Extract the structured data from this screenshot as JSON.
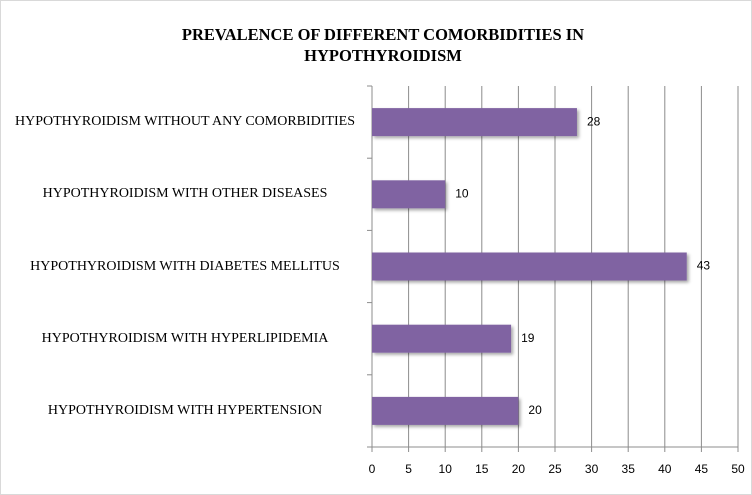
{
  "chart_data": {
    "type": "barh",
    "title": "PREVALENCE OF DIFFERENT COMORBIDITIES IN HYPOTHYROIDISM",
    "categories": [
      "HYPOTHYROIDISM WITHOUT ANY COMORBIDITIES",
      "HYPOTHYROIDISM WITH OTHER DISEASES",
      "HYPOTHYROIDISM WITH DIABETES MELLITUS",
      "HYPOTHYROIDISM WITH HYPERLIPIDEMIA",
      "HYPOTHYROIDISM WITH HYPERTENSION"
    ],
    "values": [
      28,
      10,
      43,
      19,
      20
    ],
    "color": "#8064a2",
    "xlim": [
      0,
      50
    ],
    "xticks": [
      0,
      5,
      10,
      15,
      20,
      25,
      30,
      35,
      40,
      45,
      50
    ],
    "grid": true
  }
}
